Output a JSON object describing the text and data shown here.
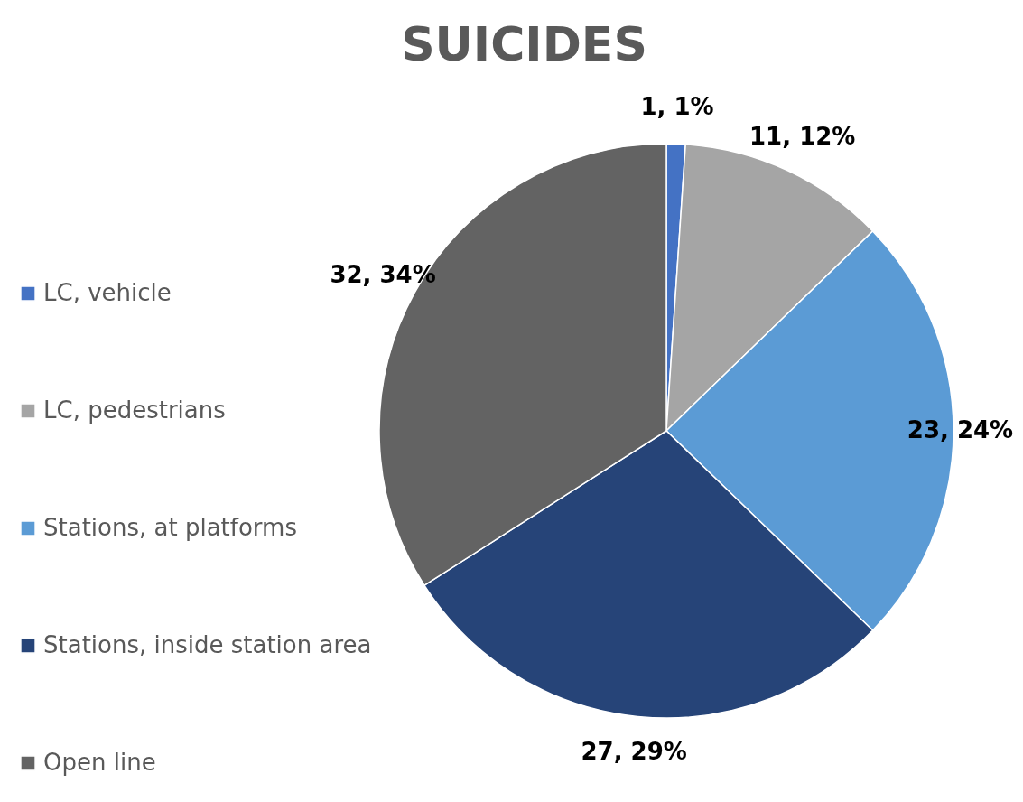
{
  "chart_data": {
    "type": "pie",
    "title": "SUICIDES",
    "categories": [
      "LC, vehicle",
      "LC, pedestrians",
      "Stations, at platforms",
      "Stations, inside station area",
      "Open line"
    ],
    "values": [
      1,
      11,
      23,
      27,
      32
    ],
    "colors": [
      "#4472c4",
      "#a5a5a5",
      "#5b9bd5",
      "#264478",
      "#636363"
    ],
    "value_labels": [
      "1, 1%",
      "11, 12%",
      "23, 24%",
      "27, 29%",
      "32, 34%"
    ],
    "legend": "left"
  }
}
